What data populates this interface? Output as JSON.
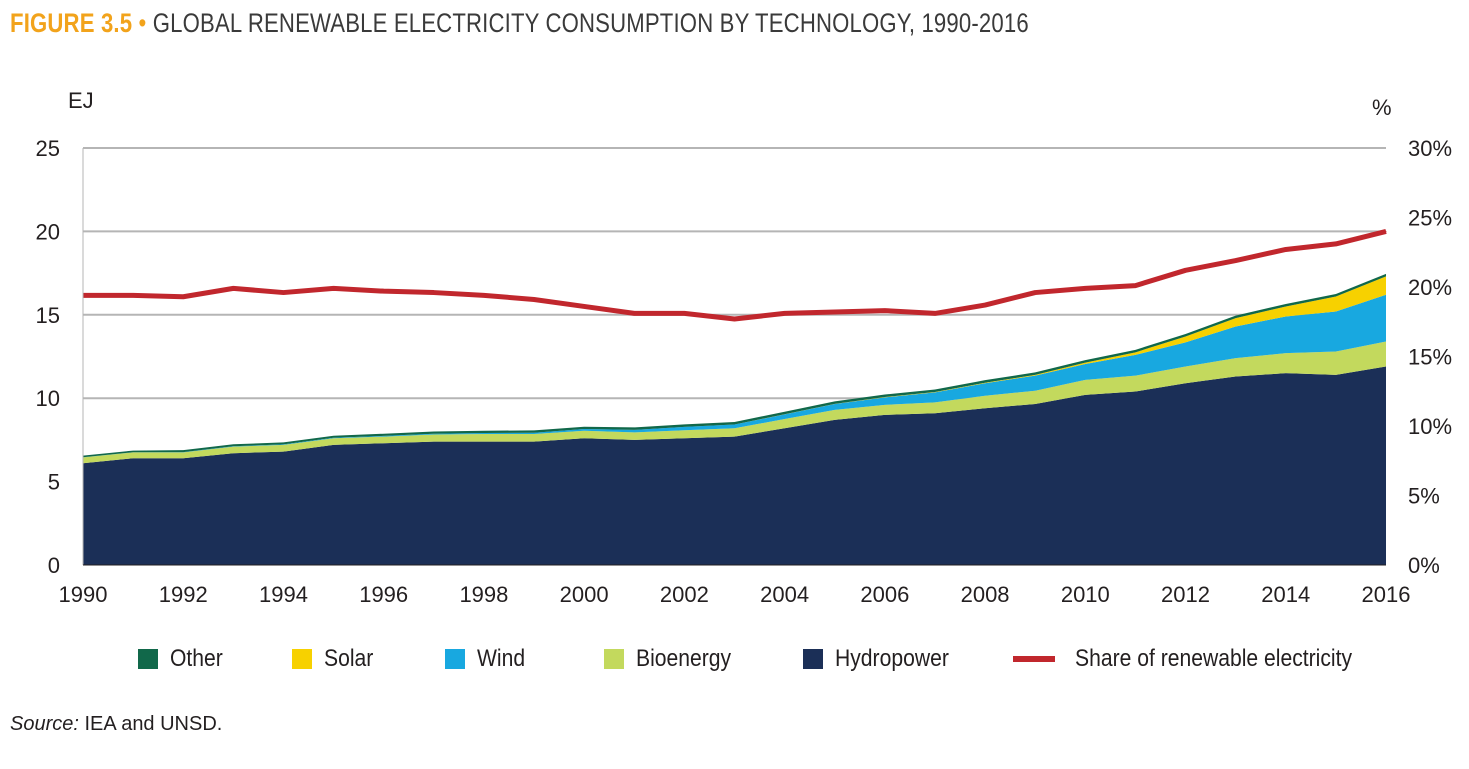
{
  "title": {
    "figure": "FIGURE 3.5",
    "separator": "•",
    "text": "GLOBAL RENEWABLE ELECTRICITY CONSUMPTION BY TECHNOLOGY, 1990-2016"
  },
  "source": {
    "label": "Source:",
    "text": "IEA and UNSD."
  },
  "chart_data": {
    "type": "area",
    "stacked": true,
    "x": [
      1990,
      1991,
      1992,
      1993,
      1994,
      1995,
      1996,
      1997,
      1998,
      1999,
      2000,
      2001,
      2002,
      2003,
      2004,
      2005,
      2006,
      2007,
      2008,
      2009,
      2010,
      2011,
      2012,
      2013,
      2014,
      2015,
      2016
    ],
    "xticks": [
      "1990",
      "1992",
      "1994",
      "1996",
      "1998",
      "2000",
      "2002",
      "2004",
      "2006",
      "2008",
      "2010",
      "2012",
      "2014",
      "2016"
    ],
    "ylabel": "EJ",
    "ylim": [
      0,
      25
    ],
    "yticks": [
      "0",
      "5",
      "10",
      "15",
      "20",
      "25"
    ],
    "y2label": "%",
    "y2lim": [
      0,
      30
    ],
    "y2ticks": [
      "0%",
      "5%",
      "10%",
      "15%",
      "20%",
      "25%",
      "30%"
    ],
    "grid": true,
    "legend_position": "bottom",
    "series": [
      {
        "name": "Hydropower",
        "color": "#1b2f57",
        "values": [
          6.1,
          6.4,
          6.4,
          6.7,
          6.8,
          7.2,
          7.3,
          7.4,
          7.4,
          7.4,
          7.6,
          7.5,
          7.6,
          7.7,
          8.2,
          8.7,
          9.0,
          9.1,
          9.4,
          9.65,
          10.2,
          10.4,
          10.9,
          11.3,
          11.5,
          11.4,
          11.9
        ]
      },
      {
        "name": "Bioenergy",
        "color": "#c3d95d",
        "values": [
          0.35,
          0.35,
          0.35,
          0.4,
          0.4,
          0.4,
          0.4,
          0.42,
          0.45,
          0.45,
          0.45,
          0.45,
          0.48,
          0.5,
          0.55,
          0.6,
          0.6,
          0.65,
          0.75,
          0.8,
          0.9,
          0.95,
          1.0,
          1.1,
          1.2,
          1.4,
          1.5
        ]
      },
      {
        "name": "Wind",
        "color": "#18a8e0",
        "values": [
          0.01,
          0.01,
          0.02,
          0.02,
          0.03,
          0.03,
          0.04,
          0.05,
          0.06,
          0.08,
          0.1,
          0.15,
          0.2,
          0.22,
          0.28,
          0.35,
          0.45,
          0.6,
          0.75,
          0.9,
          0.95,
          1.25,
          1.45,
          1.9,
          2.2,
          2.4,
          2.8
        ]
      },
      {
        "name": "Solar",
        "color": "#f7d100",
        "values": [
          0,
          0,
          0,
          0,
          0,
          0,
          0,
          0,
          0,
          0,
          0,
          0,
          0,
          0,
          0.01,
          0.01,
          0.02,
          0.02,
          0.03,
          0.05,
          0.08,
          0.15,
          0.35,
          0.5,
          0.6,
          0.9,
          1.1
        ]
      },
      {
        "name": "Other",
        "color": "#11684a",
        "values": [
          0.1,
          0.1,
          0.12,
          0.12,
          0.12,
          0.12,
          0.13,
          0.13,
          0.14,
          0.14,
          0.14,
          0.15,
          0.15,
          0.15,
          0.15,
          0.15,
          0.15,
          0.15,
          0.15,
          0.15,
          0.15,
          0.15,
          0.15,
          0.15,
          0.15,
          0.15,
          0.15
        ]
      }
    ],
    "line_series": {
      "name": "Share of renewable  electricity",
      "axis": "right",
      "color": "#c1272d",
      "values": [
        19.4,
        19.4,
        19.3,
        19.9,
        19.6,
        19.9,
        19.7,
        19.6,
        19.4,
        19.1,
        18.6,
        18.1,
        18.1,
        17.7,
        18.1,
        18.2,
        18.3,
        18.1,
        18.7,
        19.6,
        19.9,
        20.1,
        21.2,
        21.9,
        22.7,
        23.1,
        24.0
      ]
    }
  },
  "legend": [
    {
      "label": "Other",
      "color": "#11684a",
      "kind": "box"
    },
    {
      "label": "Solar",
      "color": "#f7d100",
      "kind": "box"
    },
    {
      "label": "Wind",
      "color": "#18a8e0",
      "kind": "box"
    },
    {
      "label": "Bioenergy",
      "color": "#c3d95d",
      "kind": "box"
    },
    {
      "label": "Hydropower",
      "color": "#1b2f57",
      "kind": "box"
    },
    {
      "label": "Share of renewable  electricity",
      "color": "#c1272d",
      "kind": "line"
    }
  ]
}
